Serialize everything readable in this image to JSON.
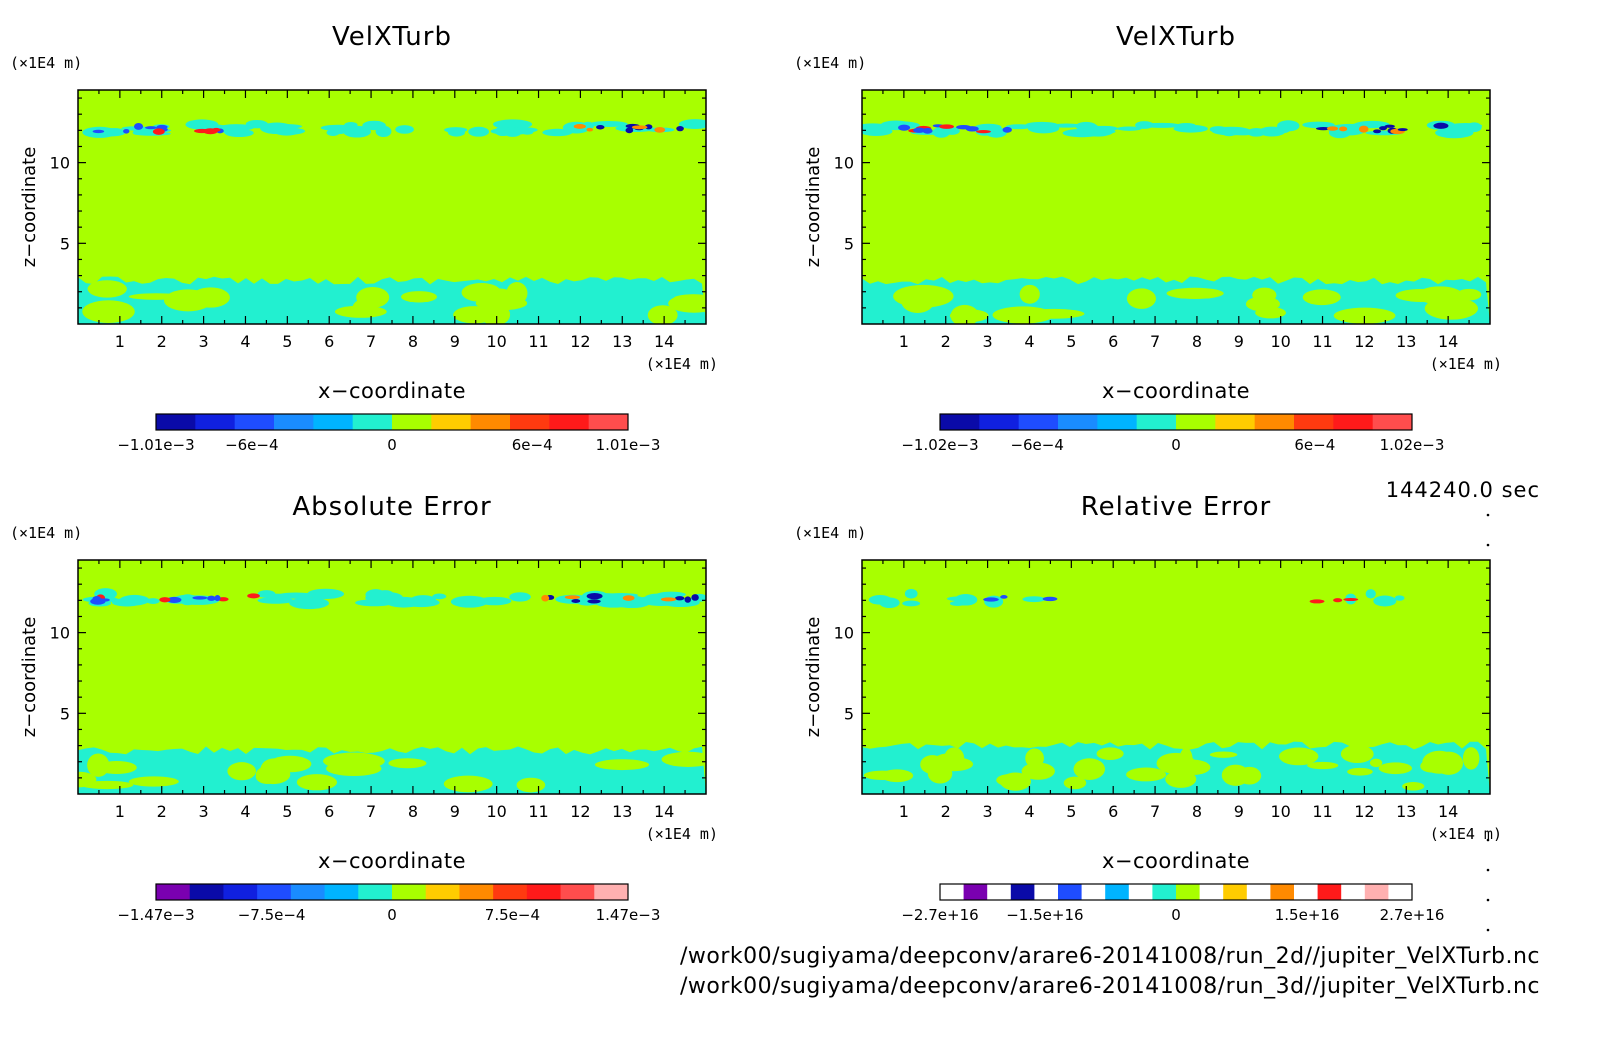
{
  "timestamp": "144240.0 sec",
  "footer_paths": [
    "/work00/sugiyama/deepconv/arare6-20141008/run_2d//jupiter_VelXTurb.nc",
    "/work00/sugiyama/deepconv/arare6-20141008/run_3d//jupiter_VelXTurb.nc"
  ],
  "colors": {
    "background": "#a8ff00",
    "cyan": "#22f0d0",
    "navy": "#0a0aa8",
    "blue": "#1f4dff",
    "red": "#ff1a1a",
    "orange": "#ff8a00"
  },
  "chart_data": [
    {
      "type": "heatmap",
      "title": "VelXTurb",
      "xlabel": "x−coordinate",
      "ylabel": "z−coordinate",
      "x_unit": "(×1E4 m)",
      "y_unit": "(×1E4 m)",
      "xlim": [
        0,
        15
      ],
      "ylim": [
        0,
        14.5
      ],
      "xticks": [
        "1",
        "2",
        "3",
        "4",
        "5",
        "6",
        "7",
        "8",
        "9",
        "10",
        "11",
        "12",
        "13",
        "14"
      ],
      "yticks": [
        "5",
        "10"
      ],
      "colorbar": {
        "colors": [
          "#0a0aa8",
          "#1020e0",
          "#1f4dff",
          "#1a8cff",
          "#00b4ff",
          "#22f0d0",
          "#a8ff00",
          "#ffcc00",
          "#ff8a00",
          "#ff3a10",
          "#ff1a1a",
          "#ff4d4d"
        ],
        "ticklabels": [
          "−1.01e−3",
          "−6e−4",
          "0",
          "6e−4",
          "1.01e−3"
        ],
        "tick_values": [
          -0.00101,
          -0.0006,
          0,
          0.0006,
          0.00101
        ],
        "range": [
          -0.00101,
          0.00101
        ]
      }
    },
    {
      "type": "heatmap",
      "title": "VelXTurb",
      "xlabel": "x−coordinate",
      "ylabel": "z−coordinate",
      "x_unit": "(×1E4 m)",
      "y_unit": "(×1E4 m)",
      "xlim": [
        0,
        15
      ],
      "ylim": [
        0,
        14.5
      ],
      "xticks": [
        "1",
        "2",
        "3",
        "4",
        "5",
        "6",
        "7",
        "8",
        "9",
        "10",
        "11",
        "12",
        "13",
        "14"
      ],
      "yticks": [
        "5",
        "10"
      ],
      "colorbar": {
        "colors": [
          "#0a0aa8",
          "#1020e0",
          "#1f4dff",
          "#1a8cff",
          "#00b4ff",
          "#22f0d0",
          "#a8ff00",
          "#ffcc00",
          "#ff8a00",
          "#ff3a10",
          "#ff1a1a",
          "#ff4d4d"
        ],
        "ticklabels": [
          "−1.02e−3",
          "−6e−4",
          "0",
          "6e−4",
          "1.02e−3"
        ],
        "tick_values": [
          -0.00102,
          -0.0006,
          0,
          0.0006,
          0.00102
        ],
        "range": [
          -0.00102,
          0.00102
        ]
      }
    },
    {
      "type": "heatmap",
      "title": "Absolute Error",
      "xlabel": "x−coordinate",
      "ylabel": "z−coordinate",
      "x_unit": "(×1E4 m)",
      "y_unit": "(×1E4 m)",
      "xlim": [
        0,
        15
      ],
      "ylim": [
        0,
        14.5
      ],
      "xticks": [
        "1",
        "2",
        "3",
        "4",
        "5",
        "6",
        "7",
        "8",
        "9",
        "10",
        "11",
        "12",
        "13",
        "14"
      ],
      "yticks": [
        "5",
        "10"
      ],
      "colorbar": {
        "colors": [
          "#7a00b0",
          "#0a0aa8",
          "#1020e0",
          "#1f4dff",
          "#1a8cff",
          "#00b4ff",
          "#22f0d0",
          "#a8ff00",
          "#ffcc00",
          "#ff8a00",
          "#ff3a10",
          "#ff1a1a",
          "#ff4d4d",
          "#ffb0b0"
        ],
        "ticklabels": [
          "−1.47e−3",
          "−7.5e−4",
          "0",
          "7.5e−4",
          "1.47e−3"
        ],
        "tick_values": [
          -0.00147,
          -0.00075,
          0,
          0.00075,
          0.00147
        ],
        "range": [
          -0.00147,
          0.00147
        ]
      }
    },
    {
      "type": "heatmap",
      "title": "Relative Error",
      "xlabel": "x−coordinate",
      "ylabel": "z−coordinate",
      "x_unit": "(×1E4 m)",
      "y_unit": "(×1E4 m)",
      "xlim": [
        0,
        15
      ],
      "ylim": [
        0,
        14.5
      ],
      "xticks": [
        "1",
        "2",
        "3",
        "4",
        "5",
        "6",
        "7",
        "8",
        "9",
        "10",
        "11",
        "12",
        "13",
        "14"
      ],
      "yticks": [
        "5",
        "10"
      ],
      "colorbar": {
        "colors": [
          "#ffffff",
          "#7a00b0",
          "#ffffff",
          "#0a0aa8",
          "#ffffff",
          "#1f4dff",
          "#ffffff",
          "#00b4ff",
          "#ffffff",
          "#22f0d0",
          "#a8ff00",
          "#ffffff",
          "#ffcc00",
          "#ffffff",
          "#ff8a00",
          "#ffffff",
          "#ff1a1a",
          "#ffffff",
          "#ffb0b0",
          "#ffffff"
        ],
        "ticklabels": [
          "−2.7e+16",
          "−1.5e+16",
          "0",
          "1.5e+16",
          "2.7e+16"
        ],
        "tick_values": [
          -2.7e+16,
          -1.5e+16,
          0,
          1.5e+16,
          2.7e+16
        ],
        "range": [
          -2.7e+16,
          2.7e+16
        ]
      }
    }
  ]
}
